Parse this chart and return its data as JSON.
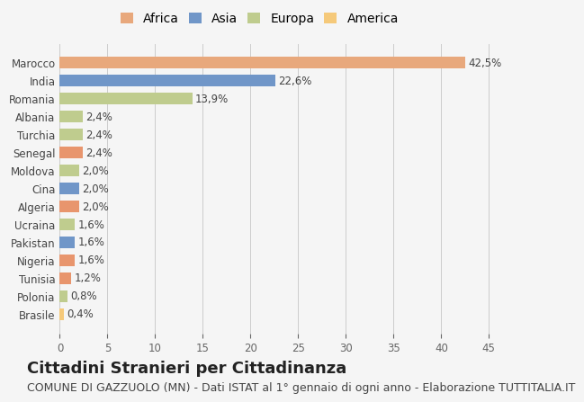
{
  "countries": [
    "Brasile",
    "Polonia",
    "Tunisia",
    "Nigeria",
    "Pakistan",
    "Ucraina",
    "Algeria",
    "Cina",
    "Moldova",
    "Senegal",
    "Turchia",
    "Albania",
    "Romania",
    "India",
    "Marocco"
  ],
  "values": [
    0.4,
    0.8,
    1.2,
    1.6,
    1.6,
    1.6,
    2.0,
    2.0,
    2.0,
    2.4,
    2.4,
    2.4,
    13.9,
    22.6,
    42.5
  ],
  "labels": [
    "0,4%",
    "0,8%",
    "1,2%",
    "1,6%",
    "1,6%",
    "1,6%",
    "2,0%",
    "2,0%",
    "2,0%",
    "2,4%",
    "2,4%",
    "2,4%",
    "13,9%",
    "22,6%",
    "42,5%"
  ],
  "colors": [
    "#F5C97A",
    "#BFCC8E",
    "#E8956D",
    "#E8956D",
    "#7096C8",
    "#BFCC8E",
    "#E8956D",
    "#7096C8",
    "#BFCC8E",
    "#E8956D",
    "#BFCC8E",
    "#BFCC8E",
    "#BFCC8E",
    "#7096C8",
    "#E8A87C"
  ],
  "legend_labels": [
    "Africa",
    "Asia",
    "Europa",
    "America"
  ],
  "legend_colors": [
    "#E8A87C",
    "#7096C8",
    "#BFCC8E",
    "#F5C97A"
  ],
  "xlim": [
    0,
    47
  ],
  "xticks": [
    0,
    5,
    10,
    15,
    20,
    25,
    30,
    35,
    40,
    45
  ],
  "title": "Cittadini Stranieri per Cittadinanza",
  "subtitle": "COMUNE DI GAZZUOLO (MN) - Dati ISTAT al 1° gennaio di ogni anno - Elaborazione TUTTITALIA.IT",
  "background_color": "#f5f5f5",
  "bar_height": 0.65,
  "title_fontsize": 13,
  "subtitle_fontsize": 9,
  "label_fontsize": 8.5,
  "tick_fontsize": 8.5,
  "legend_fontsize": 10
}
